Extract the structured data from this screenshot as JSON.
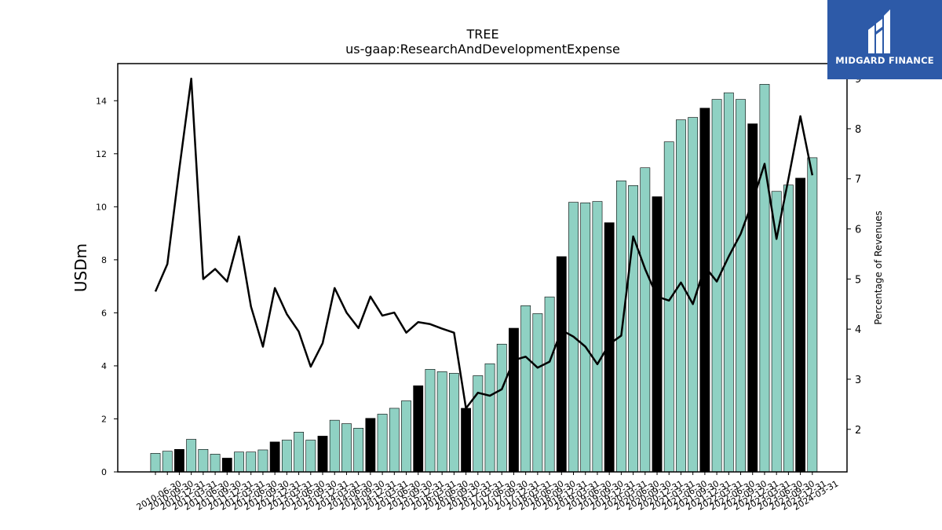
{
  "brand": {
    "name": "MIDGARD FINANCE"
  },
  "chart_data": {
    "type": "bar",
    "title": "TREE",
    "subtitle": "us-gaap:ResearchAndDevelopmentExpense",
    "ylabel": "USDm",
    "y2label": "Percentage of Revenues",
    "ylim": [
      0,
      15.4
    ],
    "y2lim": [
      1.15,
      9.3
    ],
    "yticks": [
      0,
      2,
      4,
      6,
      8,
      10,
      12,
      14
    ],
    "y2ticks": [
      2,
      3,
      4,
      5,
      6,
      7,
      8,
      9
    ],
    "colors": {
      "bar": "#8fd1c3",
      "bar_q4": "#000000",
      "line": "#000000"
    },
    "categories": [
      "2010-06-30",
      "2010-09-30",
      "2010-12-31",
      "2011-03-31",
      "2011-06-30",
      "2011-09-30",
      "2011-12-31",
      "2012-03-31",
      "2012-06-30",
      "2012-09-30",
      "2012-12-31",
      "2013-03-31",
      "2013-06-30",
      "2013-09-30",
      "2013-12-31",
      "2014-03-31",
      "2014-06-30",
      "2014-09-30",
      "2014-12-31",
      "2015-03-31",
      "2015-06-30",
      "2015-09-30",
      "2015-12-31",
      "2016-03-31",
      "2016-06-30",
      "2016-09-30",
      "2016-12-31",
      "2017-03-31",
      "2017-06-30",
      "2017-09-30",
      "2017-12-31",
      "2018-03-31",
      "2018-06-30",
      "2018-09-30",
      "2018-12-31",
      "2019-03-31",
      "2019-06-30",
      "2019-09-30",
      "2019-12-31",
      "2020-03-31",
      "2020-06-30",
      "2020-09-30",
      "2020-12-31",
      "2021-03-31",
      "2021-06-30",
      "2021-09-30",
      "2021-12-31",
      "2022-03-31",
      "2022-06-30",
      "2022-09-30",
      "2022-12-31",
      "2023-03-31",
      "2023-06-30",
      "2023-09-30",
      "2023-12-31",
      "2024-03-31"
    ],
    "xticklabels": [
      "2010-06-30",
      "2010-09-30",
      "2010-12-31",
      "2011-03-31",
      "2011-06-30",
      "2011-09-30",
      "2011-12-31",
      "2012-03-31",
      "2012-06-30",
      "2012-09-30",
      "2012-12-31",
      "2013-03-31",
      "2013-06-30",
      "2013-09-30",
      "2013-12-31",
      "2014-03-31",
      "2014-06-30",
      "2014-09-30",
      "2014-12-31",
      "2015-03-31",
      "2015-06-30",
      "2015-09-30",
      "2015-12-31",
      "2016-03-31",
      "2016-06-30",
      "2016-09-30",
      "2016-12-31",
      "2017-03-31",
      "2017-06-30",
      "2017-09-30",
      "2017-12-31",
      "2018-03-31",
      "2018-06-30",
      "2018-09-30",
      "2018-12-31",
      "2019-03-31",
      "2019-06-30",
      "2019-09-30",
      "2019-12-31",
      "2020-03-31",
      "2020-06-30",
      "2020-09-30",
      "2020-12-31",
      "2021-03-31",
      "2021-06-30",
      "2021-09-30",
      "2021-12-31",
      "2022-03-31",
      "2022-06-30",
      "2022-09-30",
      "2022-12-31",
      "2023-03-31",
      "2023-06-30",
      "2023-09-30",
      "2023-12-31",
      "2024-03-31"
    ],
    "series": [
      {
        "type": "bar",
        "axis": "left",
        "values": [
          0.7,
          0.78,
          0.85,
          1.23,
          0.85,
          0.67,
          0.52,
          0.75,
          0.75,
          0.83,
          1.13,
          1.2,
          1.5,
          1.2,
          1.35,
          1.95,
          1.82,
          1.65,
          2.02,
          2.18,
          2.4,
          2.68,
          3.25,
          3.87,
          3.78,
          3.72,
          2.4,
          3.63,
          4.08,
          4.82,
          5.42,
          6.27,
          5.97,
          6.6,
          8.12,
          10.17,
          10.15,
          10.2,
          9.4,
          10.98,
          10.8,
          11.47,
          10.38,
          12.45,
          13.28,
          13.37,
          13.72,
          14.05,
          14.3,
          14.05,
          13.13,
          14.62,
          10.58,
          10.82,
          11.08,
          11.85
        ],
        "highlight_indices": [
          2,
          6,
          10,
          14,
          18,
          22,
          26,
          30,
          34,
          38,
          42,
          46,
          50,
          54
        ]
      },
      {
        "type": "line",
        "axis": "right",
        "values": [
          4.75,
          5.3,
          7.2,
          9.0,
          5.0,
          5.2,
          4.95,
          5.85,
          4.45,
          3.65,
          4.82,
          4.3,
          3.95,
          3.25,
          3.72,
          4.82,
          4.33,
          4.02,
          4.65,
          4.27,
          4.33,
          3.93,
          4.14,
          4.1,
          4.01,
          3.93,
          2.42,
          2.73,
          2.67,
          2.8,
          3.38,
          3.45,
          3.23,
          3.35,
          3.98,
          3.85,
          3.65,
          3.3,
          3.7,
          3.87,
          5.85,
          5.2,
          4.65,
          4.57,
          4.93,
          4.5,
          5.25,
          4.95,
          5.45,
          5.9,
          6.55,
          7.3,
          5.8,
          7.0,
          8.25,
          7.07
        ]
      }
    ]
  }
}
